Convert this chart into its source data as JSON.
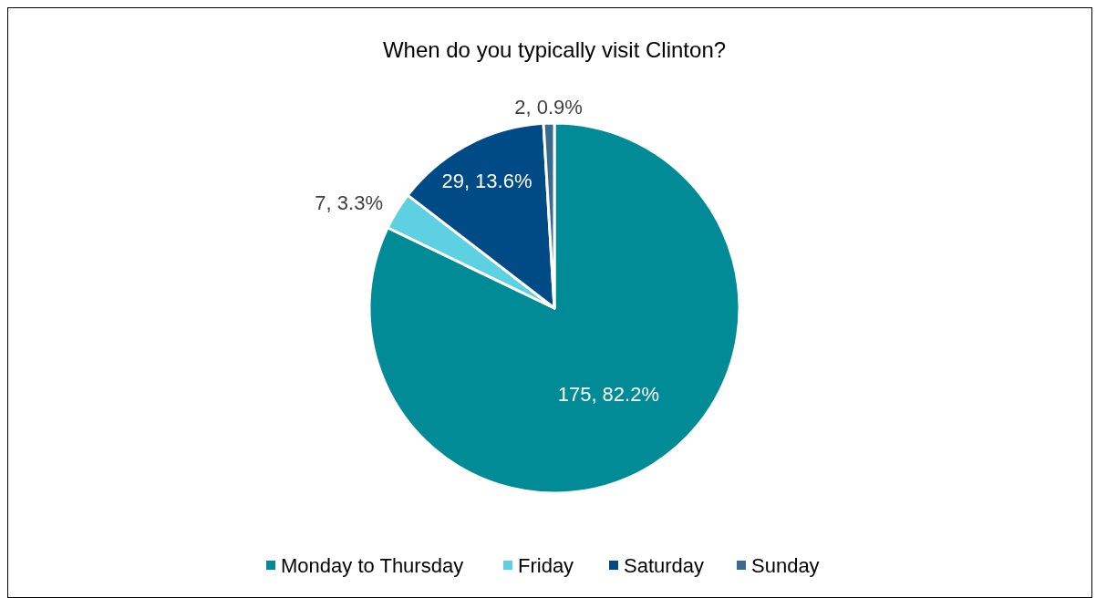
{
  "chart_data": {
    "type": "pie",
    "title": "When do you typically visit Clinton?",
    "categories": [
      "Monday to Thursday",
      "Friday",
      "Saturday",
      "Sunday"
    ],
    "values": [
      175,
      7,
      29,
      2
    ],
    "colors": [
      "#008b96",
      "#5dd0e2",
      "#004a86",
      "#3a6a8e"
    ],
    "value_labels": [
      "175, 82.2%",
      "7, 3.3%",
      "29, 13.6%",
      "2, 0.9%"
    ],
    "legend": "bottom"
  }
}
